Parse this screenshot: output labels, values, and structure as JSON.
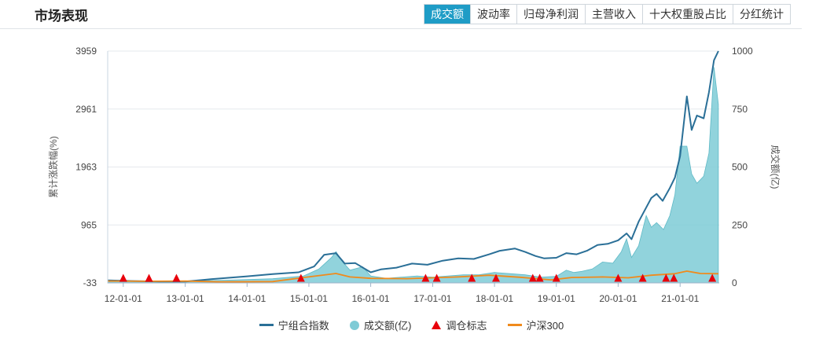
{
  "header": {
    "title": "市场表现",
    "tabs": [
      {
        "label": "成交额",
        "active": true
      },
      {
        "label": "波动率",
        "active": false
      },
      {
        "label": "归母净利润",
        "active": false
      },
      {
        "label": "主营收入",
        "active": false
      },
      {
        "label": "十大权重股占比",
        "active": false
      },
      {
        "label": "分红统计",
        "active": false
      }
    ]
  },
  "colors": {
    "index_line": "#2a6f97",
    "turnover_fill": "#7ecbd6",
    "rebalance_marker": "#e8000b",
    "hs300_line": "#f08a1c",
    "active_tab": "#1e9cc6"
  },
  "chart_data": {
    "type": "line",
    "title": "",
    "xlabel": "",
    "ylabel": "累计涨跌幅(%)",
    "y2label": "成交额(亿)",
    "xlim": [
      "2011-10-01",
      "2021-08-20"
    ],
    "ylim": [
      -33,
      3959
    ],
    "y2lim": [
      0,
      1000
    ],
    "y_ticks": [
      -33,
      965,
      1963,
      2961,
      3959
    ],
    "y_tick_labels": [
      "-33",
      "965",
      "1963",
      "2961",
      "3959"
    ],
    "y2_ticks": [
      0,
      250,
      500,
      750,
      1000
    ],
    "y2_tick_labels": [
      "0",
      "250",
      "500",
      "750",
      "1000"
    ],
    "x_ticks": [
      "2012-01-01",
      "2013-01-01",
      "2014-01-01",
      "2015-01-01",
      "2016-01-01",
      "2017-01-01",
      "2018-01-01",
      "2019-01-01",
      "2020-01-01",
      "2021-01-01"
    ],
    "x_tick_labels": [
      "12-01-01",
      "13-01-01",
      "14-01-01",
      "15-01-01",
      "16-01-01",
      "17-01-01",
      "18-01-01",
      "19-01-01",
      "20-01-01",
      "21-01-01"
    ],
    "grid": true,
    "legend_position": "bottom",
    "series": [
      {
        "name": "宁组合指数",
        "axis": "left",
        "kind": "line",
        "x": [
          "2011-10-01",
          "2012-03-01",
          "2012-08-01",
          "2013-01-01",
          "2013-06-01",
          "2014-01-01",
          "2014-06-01",
          "2014-11-01",
          "2015-02-01",
          "2015-04-01",
          "2015-06-10",
          "2015-08-01",
          "2015-10-01",
          "2016-01-01",
          "2016-03-01",
          "2016-06-01",
          "2016-09-01",
          "2016-12-01",
          "2017-03-01",
          "2017-06-01",
          "2017-09-01",
          "2017-12-01",
          "2018-02-01",
          "2018-05-01",
          "2018-07-01",
          "2018-09-01",
          "2018-10-20",
          "2019-01-01",
          "2019-03-01",
          "2019-05-01",
          "2019-07-01",
          "2019-09-01",
          "2019-11-01",
          "2020-01-01",
          "2020-02-20",
          "2020-03-20",
          "2020-05-01",
          "2020-07-15",
          "2020-08-15",
          "2020-09-20",
          "2020-11-01",
          "2020-12-01",
          "2021-01-01",
          "2021-02-10",
          "2021-03-10",
          "2021-04-10",
          "2021-05-20",
          "2021-06-20",
          "2021-07-20",
          "2021-08-15"
        ],
        "y": [
          10,
          0,
          -10,
          -10,
          30,
          80,
          120,
          150,
          250,
          450,
          480,
          300,
          310,
          150,
          200,
          230,
          300,
          280,
          350,
          390,
          380,
          460,
          520,
          560,
          500,
          430,
          390,
          400,
          480,
          460,
          520,
          620,
          640,
          700,
          820,
          720,
          1020,
          1430,
          1500,
          1380,
          1600,
          1780,
          2150,
          3180,
          2600,
          2850,
          2800,
          3250,
          3800,
          3959
        ]
      },
      {
        "name": "成交额(亿)",
        "axis": "right",
        "kind": "area",
        "x": [
          "2011-10-01",
          "2012-06-01",
          "2013-01-01",
          "2013-09-01",
          "2014-06-01",
          "2014-12-01",
          "2015-03-01",
          "2015-05-15",
          "2015-06-10",
          "2015-07-20",
          "2015-09-01",
          "2015-11-15",
          "2016-01-01",
          "2016-04-01",
          "2016-07-01",
          "2016-10-01",
          "2017-01-01",
          "2017-04-01",
          "2017-07-01",
          "2017-10-01",
          "2018-01-01",
          "2018-04-01",
          "2018-07-01",
          "2018-10-01",
          "2019-01-01",
          "2019-03-01",
          "2019-04-15",
          "2019-06-01",
          "2019-08-01",
          "2019-10-01",
          "2019-12-01",
          "2020-01-20",
          "2020-02-20",
          "2020-03-20",
          "2020-05-01",
          "2020-06-15",
          "2020-07-15",
          "2020-08-15",
          "2020-09-25",
          "2020-11-01",
          "2020-12-01",
          "2021-01-01",
          "2021-02-10",
          "2021-03-10",
          "2021-04-10",
          "2021-05-20",
          "2021-06-20",
          "2021-07-20",
          "2021-08-15"
        ],
        "y": [
          5,
          6,
          8,
          12,
          18,
          30,
          60,
          110,
          135,
          90,
          55,
          70,
          30,
          20,
          25,
          30,
          25,
          30,
          35,
          35,
          45,
          40,
          35,
          25,
          28,
          55,
          45,
          50,
          60,
          90,
          85,
          135,
          190,
          110,
          160,
          290,
          240,
          260,
          230,
          290,
          380,
          590,
          590,
          470,
          430,
          460,
          560,
          930,
          770
        ]
      },
      {
        "name": "调仓标志",
        "axis": "left",
        "kind": "marker",
        "x": [
          "2012-01-01",
          "2012-06-01",
          "2012-11-10",
          "2014-11-15",
          "2016-11-20",
          "2017-01-25",
          "2017-08-20",
          "2018-01-10",
          "2018-08-15",
          "2018-09-25",
          "2019-01-01",
          "2020-01-01",
          "2020-05-25",
          "2020-10-10",
          "2020-11-25",
          "2021-07-10"
        ],
        "y": [
          0,
          0,
          0,
          0,
          0,
          0,
          0,
          0,
          0,
          0,
          0,
          0,
          0,
          0,
          0,
          0
        ]
      },
      {
        "name": "沪深300",
        "axis": "left",
        "kind": "line",
        "x": [
          "2011-10-01",
          "2012-06-01",
          "2013-01-01",
          "2013-08-01",
          "2014-06-01",
          "2014-12-01",
          "2015-06-10",
          "2015-09-01",
          "2016-01-01",
          "2016-08-01",
          "2017-01-01",
          "2017-06-01",
          "2017-12-01",
          "2018-06-01",
          "2018-12-01",
          "2019-04-01",
          "2019-10-01",
          "2020-03-01",
          "2020-07-15",
          "2020-12-01",
          "2021-02-10",
          "2021-05-01",
          "2021-08-15"
        ],
        "y": [
          0,
          -5,
          0,
          -15,
          -10,
          60,
          130,
          70,
          45,
          40,
          55,
          70,
          100,
          65,
          20,
          60,
          70,
          55,
          100,
          125,
          170,
          130,
          125
        ]
      }
    ]
  }
}
